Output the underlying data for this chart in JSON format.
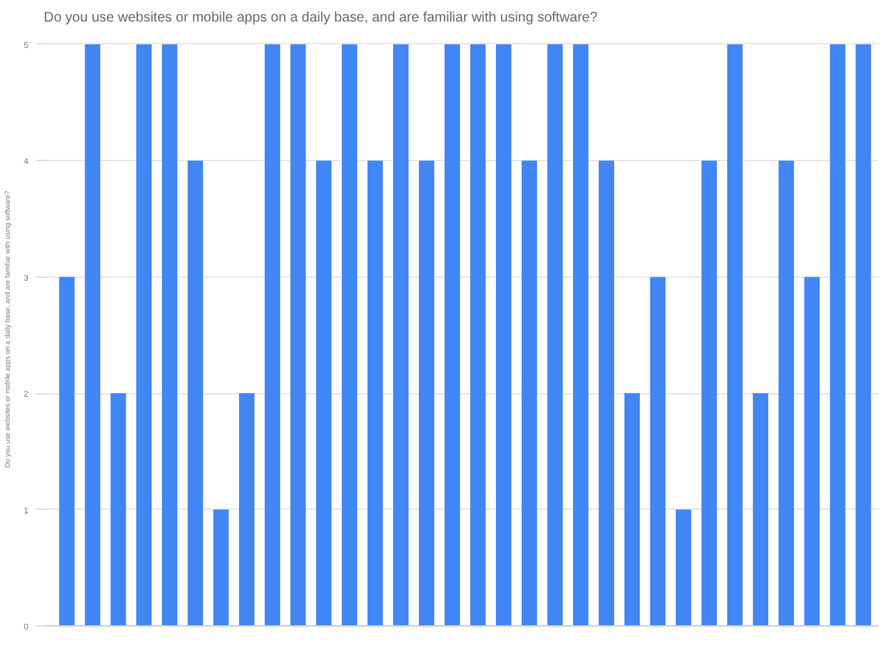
{
  "chart_data": {
    "type": "bar",
    "title": "Do you use websites or mobile apps on a daily base, and are familiar with using software?",
    "ylabel": "Do you use websites or mobile apps on a daily base, and are familiar with using software?",
    "categories": [
      null,
      null,
      null,
      null,
      null,
      null,
      null,
      null,
      null,
      null,
      null,
      null,
      null,
      null,
      null,
      null,
      null,
      null,
      null,
      null,
      null,
      null,
      null,
      null,
      null,
      null,
      null,
      null,
      null,
      null,
      null,
      null
    ],
    "values": [
      3,
      5,
      2,
      5,
      5,
      4,
      1,
      2,
      5,
      5,
      4,
      5,
      4,
      5,
      4,
      5,
      5,
      5,
      4,
      5,
      5,
      4,
      2,
      3,
      1,
      4,
      5,
      2,
      4,
      3,
      5,
      5
    ],
    "color": "#4285f4",
    "ylim": [
      0,
      5
    ],
    "yticks": [
      0,
      1,
      2,
      3,
      4,
      5
    ],
    "grid": "y"
  }
}
